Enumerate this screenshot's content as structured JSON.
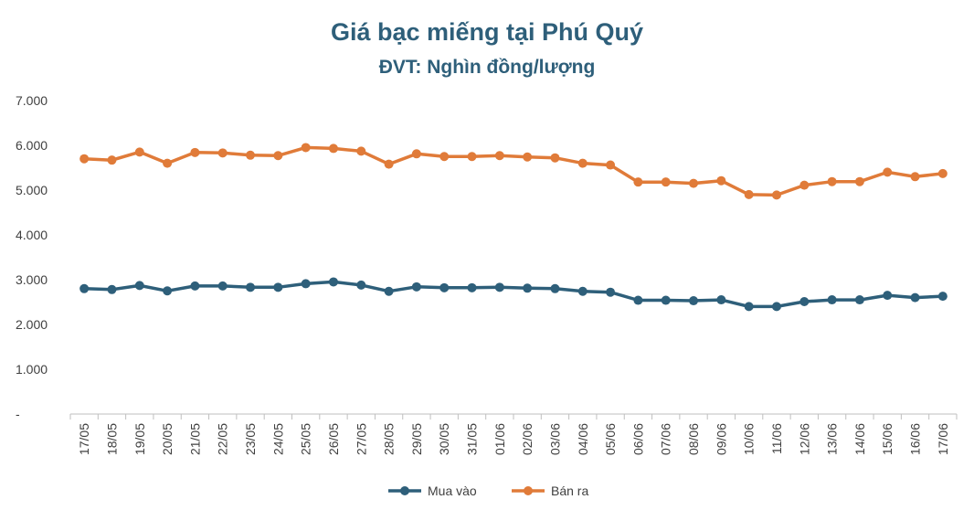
{
  "chart_data": {
    "type": "line",
    "title": "Giá bạc miếng tại Phú Quý",
    "subtitle": "ĐVT: Nghìn đồng/lượng",
    "categories": [
      "17/05",
      "18/05",
      "19/05",
      "20/05",
      "21/05",
      "22/05",
      "23/05",
      "24/05",
      "25/05",
      "26/05",
      "27/05",
      "28/05",
      "29/05",
      "30/05",
      "31/05",
      "01/06",
      "02/06",
      "03/06",
      "04/06",
      "05/06",
      "06/06",
      "07/06",
      "08/06",
      "09/06",
      "10/06",
      "11/06",
      "12/06",
      "13/06",
      "14/06",
      "15/06",
      "16/06",
      "17/06"
    ],
    "series": [
      {
        "name": "Mua vào",
        "color": "#2e5f7a",
        "values": [
          2800,
          2780,
          2870,
          2750,
          2860,
          2860,
          2830,
          2830,
          2910,
          2950,
          2880,
          2740,
          2840,
          2820,
          2820,
          2830,
          2810,
          2800,
          2740,
          2720,
          2540,
          2540,
          2530,
          2550,
          2400,
          2400,
          2510,
          2550,
          2550,
          2650,
          2600,
          2630
        ]
      },
      {
        "name": "Bán ra",
        "color": "#e07b39",
        "values": [
          5700,
          5670,
          5850,
          5600,
          5840,
          5830,
          5780,
          5770,
          5950,
          5930,
          5870,
          5580,
          5810,
          5750,
          5750,
          5770,
          5740,
          5720,
          5600,
          5560,
          5180,
          5180,
          5150,
          5210,
          4900,
          4890,
          5110,
          5190,
          5190,
          5400,
          5300,
          5370
        ]
      }
    ],
    "y_ticks": [
      "-",
      "1.000",
      "2.000",
      "3.000",
      "4.000",
      "5.000",
      "6.000",
      "7.000"
    ],
    "ylim": [
      0,
      7000
    ],
    "grid": false,
    "legend": "bottom-center"
  }
}
